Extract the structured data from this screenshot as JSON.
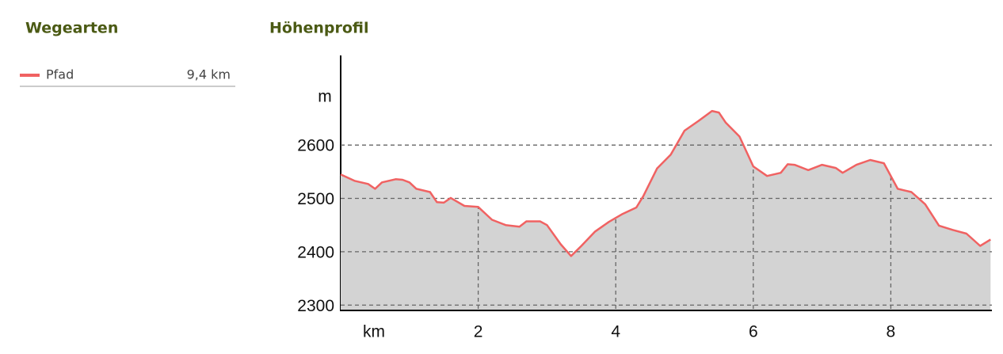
{
  "chart_data": {
    "type": "area",
    "title": "Höhenprofil",
    "legend_title": "Wegearten",
    "y_label": "m",
    "x_label": "km",
    "x": [
      0,
      0.2,
      0.4,
      0.5,
      0.6,
      0.8,
      0.9,
      1.0,
      1.1,
      1.3,
      1.4,
      1.5,
      1.6,
      1.8,
      2.0,
      2.2,
      2.4,
      2.6,
      2.7,
      2.9,
      3.0,
      3.2,
      3.35,
      3.5,
      3.7,
      3.9,
      4.1,
      4.3,
      4.4,
      4.6,
      4.8,
      5.0,
      5.2,
      5.4,
      5.5,
      5.6,
      5.8,
      6.0,
      6.2,
      6.4,
      6.5,
      6.6,
      6.8,
      7.0,
      7.2,
      7.3,
      7.5,
      7.7,
      7.9,
      8.1,
      8.3,
      8.5,
      8.7,
      8.9,
      9.1,
      9.3,
      9.45
    ],
    "series": [
      {
        "name": "Pfad",
        "color": "#f06262",
        "fill": "#d3d3d3",
        "length_label": "9,4 km",
        "values": [
          2545,
          2533,
          2527,
          2518,
          2530,
          2536,
          2535,
          2530,
          2518,
          2512,
          2493,
          2492,
          2501,
          2486,
          2484,
          2460,
          2450,
          2447,
          2457,
          2457,
          2450,
          2414,
          2392,
          2411,
          2438,
          2456,
          2471,
          2483,
          2504,
          2556,
          2582,
          2627,
          2645,
          2664,
          2661,
          2642,
          2616,
          2560,
          2542,
          2548,
          2564,
          2563,
          2553,
          2563,
          2557,
          2548,
          2563,
          2572,
          2566,
          2518,
          2512,
          2489,
          2449,
          2441,
          2434,
          2411,
          2423
        ]
      }
    ],
    "xlim": [
      0,
      9.47
    ],
    "ylim": [
      2290,
      2768
    ],
    "xticks": [
      2,
      4,
      6,
      8
    ],
    "yticks": [
      2300,
      2400,
      2500,
      2600
    ],
    "grid": true
  }
}
